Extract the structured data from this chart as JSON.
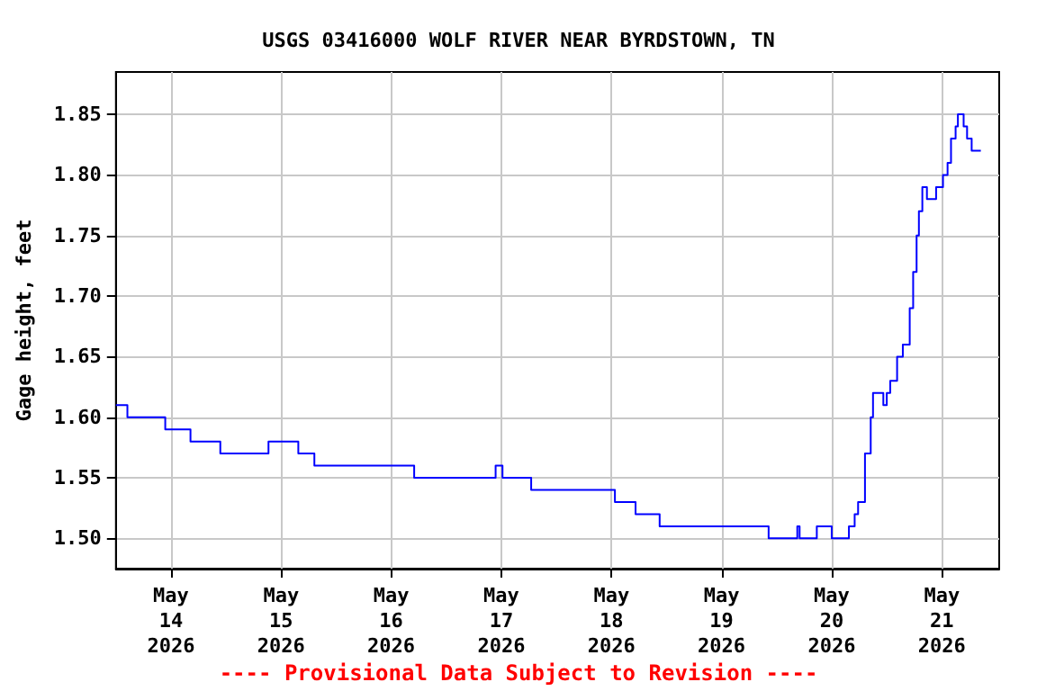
{
  "chart_data": {
    "type": "step",
    "title": "USGS 03416000 WOLF RIVER NEAR BYRDSTOWN, TN",
    "ylabel": "Gage height, feet",
    "annotations": [
      "---- Provisional Data Subject to Revision ----"
    ],
    "x": [
      "2026-05-13T12:00",
      "2026-05-13T14:30",
      "2026-05-13T22:45",
      "2026-05-14T04:15",
      "2026-05-14T10:45",
      "2026-05-14T21:15",
      "2026-05-15T03:45",
      "2026-05-15T07:15",
      "2026-05-16T05:00",
      "2026-05-16T22:45",
      "2026-05-17T00:15",
      "2026-05-17T06:30",
      "2026-05-18T00:45",
      "2026-05-18T05:15",
      "2026-05-18T10:30",
      "2026-05-19T10:15",
      "2026-05-19T16:30",
      "2026-05-19T17:00",
      "2026-05-19T20:45",
      "2026-05-20T00:00",
      "2026-05-20T03:45",
      "2026-05-20T05:00",
      "2026-05-20T05:45",
      "2026-05-20T07:15",
      "2026-05-20T08:30",
      "2026-05-20T09:00",
      "2026-05-20T11:15",
      "2026-05-20T12:00",
      "2026-05-20T12:45",
      "2026-05-20T14:15",
      "2026-05-20T15:30",
      "2026-05-20T17:00",
      "2026-05-20T17:45",
      "2026-05-20T18:30",
      "2026-05-20T19:00",
      "2026-05-20T19:45",
      "2026-05-20T20:45",
      "2026-05-20T22:45",
      "2026-05-21T00:15",
      "2026-05-21T01:15",
      "2026-05-21T02:00",
      "2026-05-21T03:00",
      "2026-05-21T03:30",
      "2026-05-21T04:45",
      "2026-05-21T05:30",
      "2026-05-21T06:30",
      "2026-05-21T08:30"
    ],
    "series": [
      {
        "color": "#0000ff",
        "values": [
          1.61,
          1.6,
          1.59,
          1.58,
          1.57,
          1.58,
          1.57,
          1.56,
          1.55,
          1.56,
          1.55,
          1.54,
          1.53,
          1.52,
          1.51,
          1.5,
          1.51,
          1.5,
          1.51,
          1.5,
          1.51,
          1.52,
          1.53,
          1.57,
          1.6,
          1.62,
          1.61,
          1.62,
          1.63,
          1.65,
          1.66,
          1.69,
          1.72,
          1.75,
          1.77,
          1.79,
          1.78,
          1.79,
          1.8,
          1.81,
          1.83,
          1.84,
          1.85,
          1.84,
          1.83,
          1.82,
          1.82
        ]
      }
    ],
    "xlim": [
      "2026-05-13T12:00",
      "2026-05-21T12:30"
    ],
    "xticks": [
      {
        "value": "2026-05-14T00:00",
        "label": "May\n14\n2026"
      },
      {
        "value": "2026-05-15T00:00",
        "label": "May\n15\n2026"
      },
      {
        "value": "2026-05-16T00:00",
        "label": "May\n16\n2026"
      },
      {
        "value": "2026-05-17T00:00",
        "label": "May\n17\n2026"
      },
      {
        "value": "2026-05-18T00:00",
        "label": "May\n18\n2026"
      },
      {
        "value": "2026-05-19T00:00",
        "label": "May\n19\n2026"
      },
      {
        "value": "2026-05-20T00:00",
        "label": "May\n20\n2026"
      },
      {
        "value": "2026-05-21T00:00",
        "label": "May\n21\n2026"
      }
    ],
    "ylim": [
      1.475,
      1.885
    ],
    "yticks": [
      {
        "value": 1.5,
        "label": "1.50"
      },
      {
        "value": 1.55,
        "label": "1.55"
      },
      {
        "value": 1.6,
        "label": "1.60"
      },
      {
        "value": 1.65,
        "label": "1.65"
      },
      {
        "value": 1.7,
        "label": "1.70"
      },
      {
        "value": 1.75,
        "label": "1.75"
      },
      {
        "value": 1.8,
        "label": "1.80"
      },
      {
        "value": 1.85,
        "label": "1.85"
      }
    ],
    "grid": true,
    "marker": "none",
    "line_style": "solid"
  }
}
